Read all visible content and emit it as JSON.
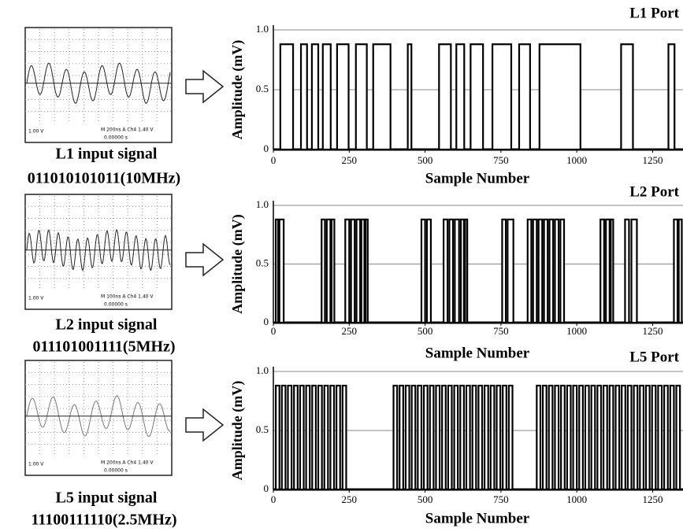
{
  "panels": [
    {
      "title": "L1 input signal",
      "code": "011010101011(10MHz)",
      "scope": {
        "volts": "1.00 V",
        "timebase": "M 200ns  A  Ch4  1.40 V",
        "offset": "0.00000 s"
      }
    },
    {
      "title": "L2 input signal",
      "code": "011101001111(5MHz)",
      "scope": {
        "volts": "1.00 V",
        "timebase": "M 100ns  A  Ch4  1.40 V",
        "offset": "0.00000 s"
      }
    },
    {
      "title": "L5 input signal",
      "code": "11100111110(2.5MHz)",
      "scope": {
        "volts": "1.00 V",
        "timebase": "M 200ns  A  Ch4  1.40 V",
        "offset": "0.00000 s"
      }
    }
  ],
  "chart_data": [
    {
      "type": "pulse",
      "title": "L1 Port",
      "xlabel": "Sample Number",
      "ylabel": "Amplitude  (mV)",
      "xlim": [
        0,
        1350
      ],
      "xticks": [
        0,
        250,
        500,
        750,
        1000,
        1250
      ],
      "ylim": [
        0,
        1
      ],
      "yticks": [
        0,
        0.5,
        {
          "value": 1,
          "label": "1.0"
        }
      ],
      "amplitude": 0.88,
      "color": "#000000",
      "pulses": [
        [
          23,
          65
        ],
        [
          91,
          111
        ],
        [
          127,
          148
        ],
        [
          163,
          189
        ],
        [
          210,
          248
        ],
        [
          272,
          308
        ],
        [
          329,
          386
        ],
        [
          443,
          455
        ],
        [
          546,
          585
        ],
        [
          603,
          629
        ],
        [
          650,
          691
        ],
        [
          722,
          784
        ],
        [
          810,
          846
        ],
        [
          877,
          1012
        ],
        [
          1146,
          1185
        ],
        [
          1302,
          1322
        ]
      ]
    },
    {
      "type": "pulse",
      "title": "L2 Port",
      "xlabel": "Sample Number",
      "ylabel": "Amplitude  (mV)",
      "xlim": [
        0,
        1350
      ],
      "xticks": [
        0,
        250,
        500,
        750,
        1000,
        1250
      ],
      "ylim": [
        0,
        1
      ],
      "yticks": [
        0,
        0.5,
        {
          "value": 1,
          "label": "1.0"
        }
      ],
      "amplitude": 0.88,
      "color": "#000000",
      "pulses": [
        [
          8,
          16
        ],
        [
          20,
          34
        ],
        [
          159,
          170
        ],
        [
          176,
          188
        ],
        [
          192,
          201
        ],
        [
          237,
          250
        ],
        [
          256,
          268
        ],
        [
          274,
          286
        ],
        [
          290,
          300
        ],
        [
          304,
          311
        ],
        [
          488,
          500
        ],
        [
          506,
          519
        ],
        [
          561,
          574
        ],
        [
          580,
          592
        ],
        [
          598,
          612
        ],
        [
          618,
          628
        ],
        [
          632,
          639
        ],
        [
          754,
          766
        ],
        [
          772,
          791
        ],
        [
          838,
          850
        ],
        [
          856,
          868
        ],
        [
          874,
          886
        ],
        [
          892,
          904
        ],
        [
          910,
          922
        ],
        [
          928,
          940
        ],
        [
          946,
          958
        ],
        [
          1078,
          1090
        ],
        [
          1096,
          1108
        ],
        [
          1112,
          1120
        ],
        [
          1159,
          1172
        ],
        [
          1180,
          1198
        ],
        [
          1320,
          1332
        ],
        [
          1336,
          1346
        ]
      ]
    },
    {
      "type": "pulse",
      "title": "L5 Port",
      "xlabel": "Sample Number",
      "ylabel": "Amplitude  (mV)",
      "xlim": [
        0,
        1350
      ],
      "xticks": [
        0,
        250,
        500,
        750,
        1000,
        1250
      ],
      "ylim": [
        0,
        1
      ],
      "yticks": [
        0,
        0.5,
        {
          "value": 1,
          "label": "1.0"
        }
      ],
      "amplitude": 0.88,
      "color": "#000000",
      "pulses": [
        [
          8,
          20
        ],
        [
          28,
          40
        ],
        [
          48,
          60
        ],
        [
          68,
          80
        ],
        [
          88,
          100
        ],
        [
          108,
          120
        ],
        [
          128,
          140
        ],
        [
          148,
          160
        ],
        [
          168,
          180
        ],
        [
          188,
          200
        ],
        [
          208,
          220
        ],
        [
          228,
          240
        ],
        [
          396,
          408
        ],
        [
          416,
          428
        ],
        [
          436,
          448
        ],
        [
          456,
          468
        ],
        [
          476,
          488
        ],
        [
          496,
          508
        ],
        [
          516,
          528
        ],
        [
          536,
          548
        ],
        [
          556,
          568
        ],
        [
          576,
          588
        ],
        [
          596,
          608
        ],
        [
          616,
          628
        ],
        [
          636,
          648
        ],
        [
          656,
          668
        ],
        [
          676,
          688
        ],
        [
          696,
          708
        ],
        [
          716,
          728
        ],
        [
          736,
          748
        ],
        [
          756,
          768
        ],
        [
          776,
          788
        ],
        [
          868,
          880
        ],
        [
          888,
          900
        ],
        [
          908,
          920
        ],
        [
          928,
          940
        ],
        [
          948,
          960
        ],
        [
          968,
          980
        ],
        [
          988,
          1000
        ],
        [
          1008,
          1020
        ],
        [
          1028,
          1040
        ],
        [
          1048,
          1060
        ],
        [
          1068,
          1080
        ],
        [
          1088,
          1100
        ],
        [
          1108,
          1120
        ],
        [
          1128,
          1140
        ],
        [
          1148,
          1160
        ],
        [
          1168,
          1180
        ],
        [
          1188,
          1200
        ],
        [
          1208,
          1220
        ],
        [
          1228,
          1240
        ],
        [
          1248,
          1260
        ],
        [
          1268,
          1280
        ],
        [
          1288,
          1300
        ],
        [
          1308,
          1320
        ],
        [
          1328,
          1340
        ]
      ]
    }
  ]
}
